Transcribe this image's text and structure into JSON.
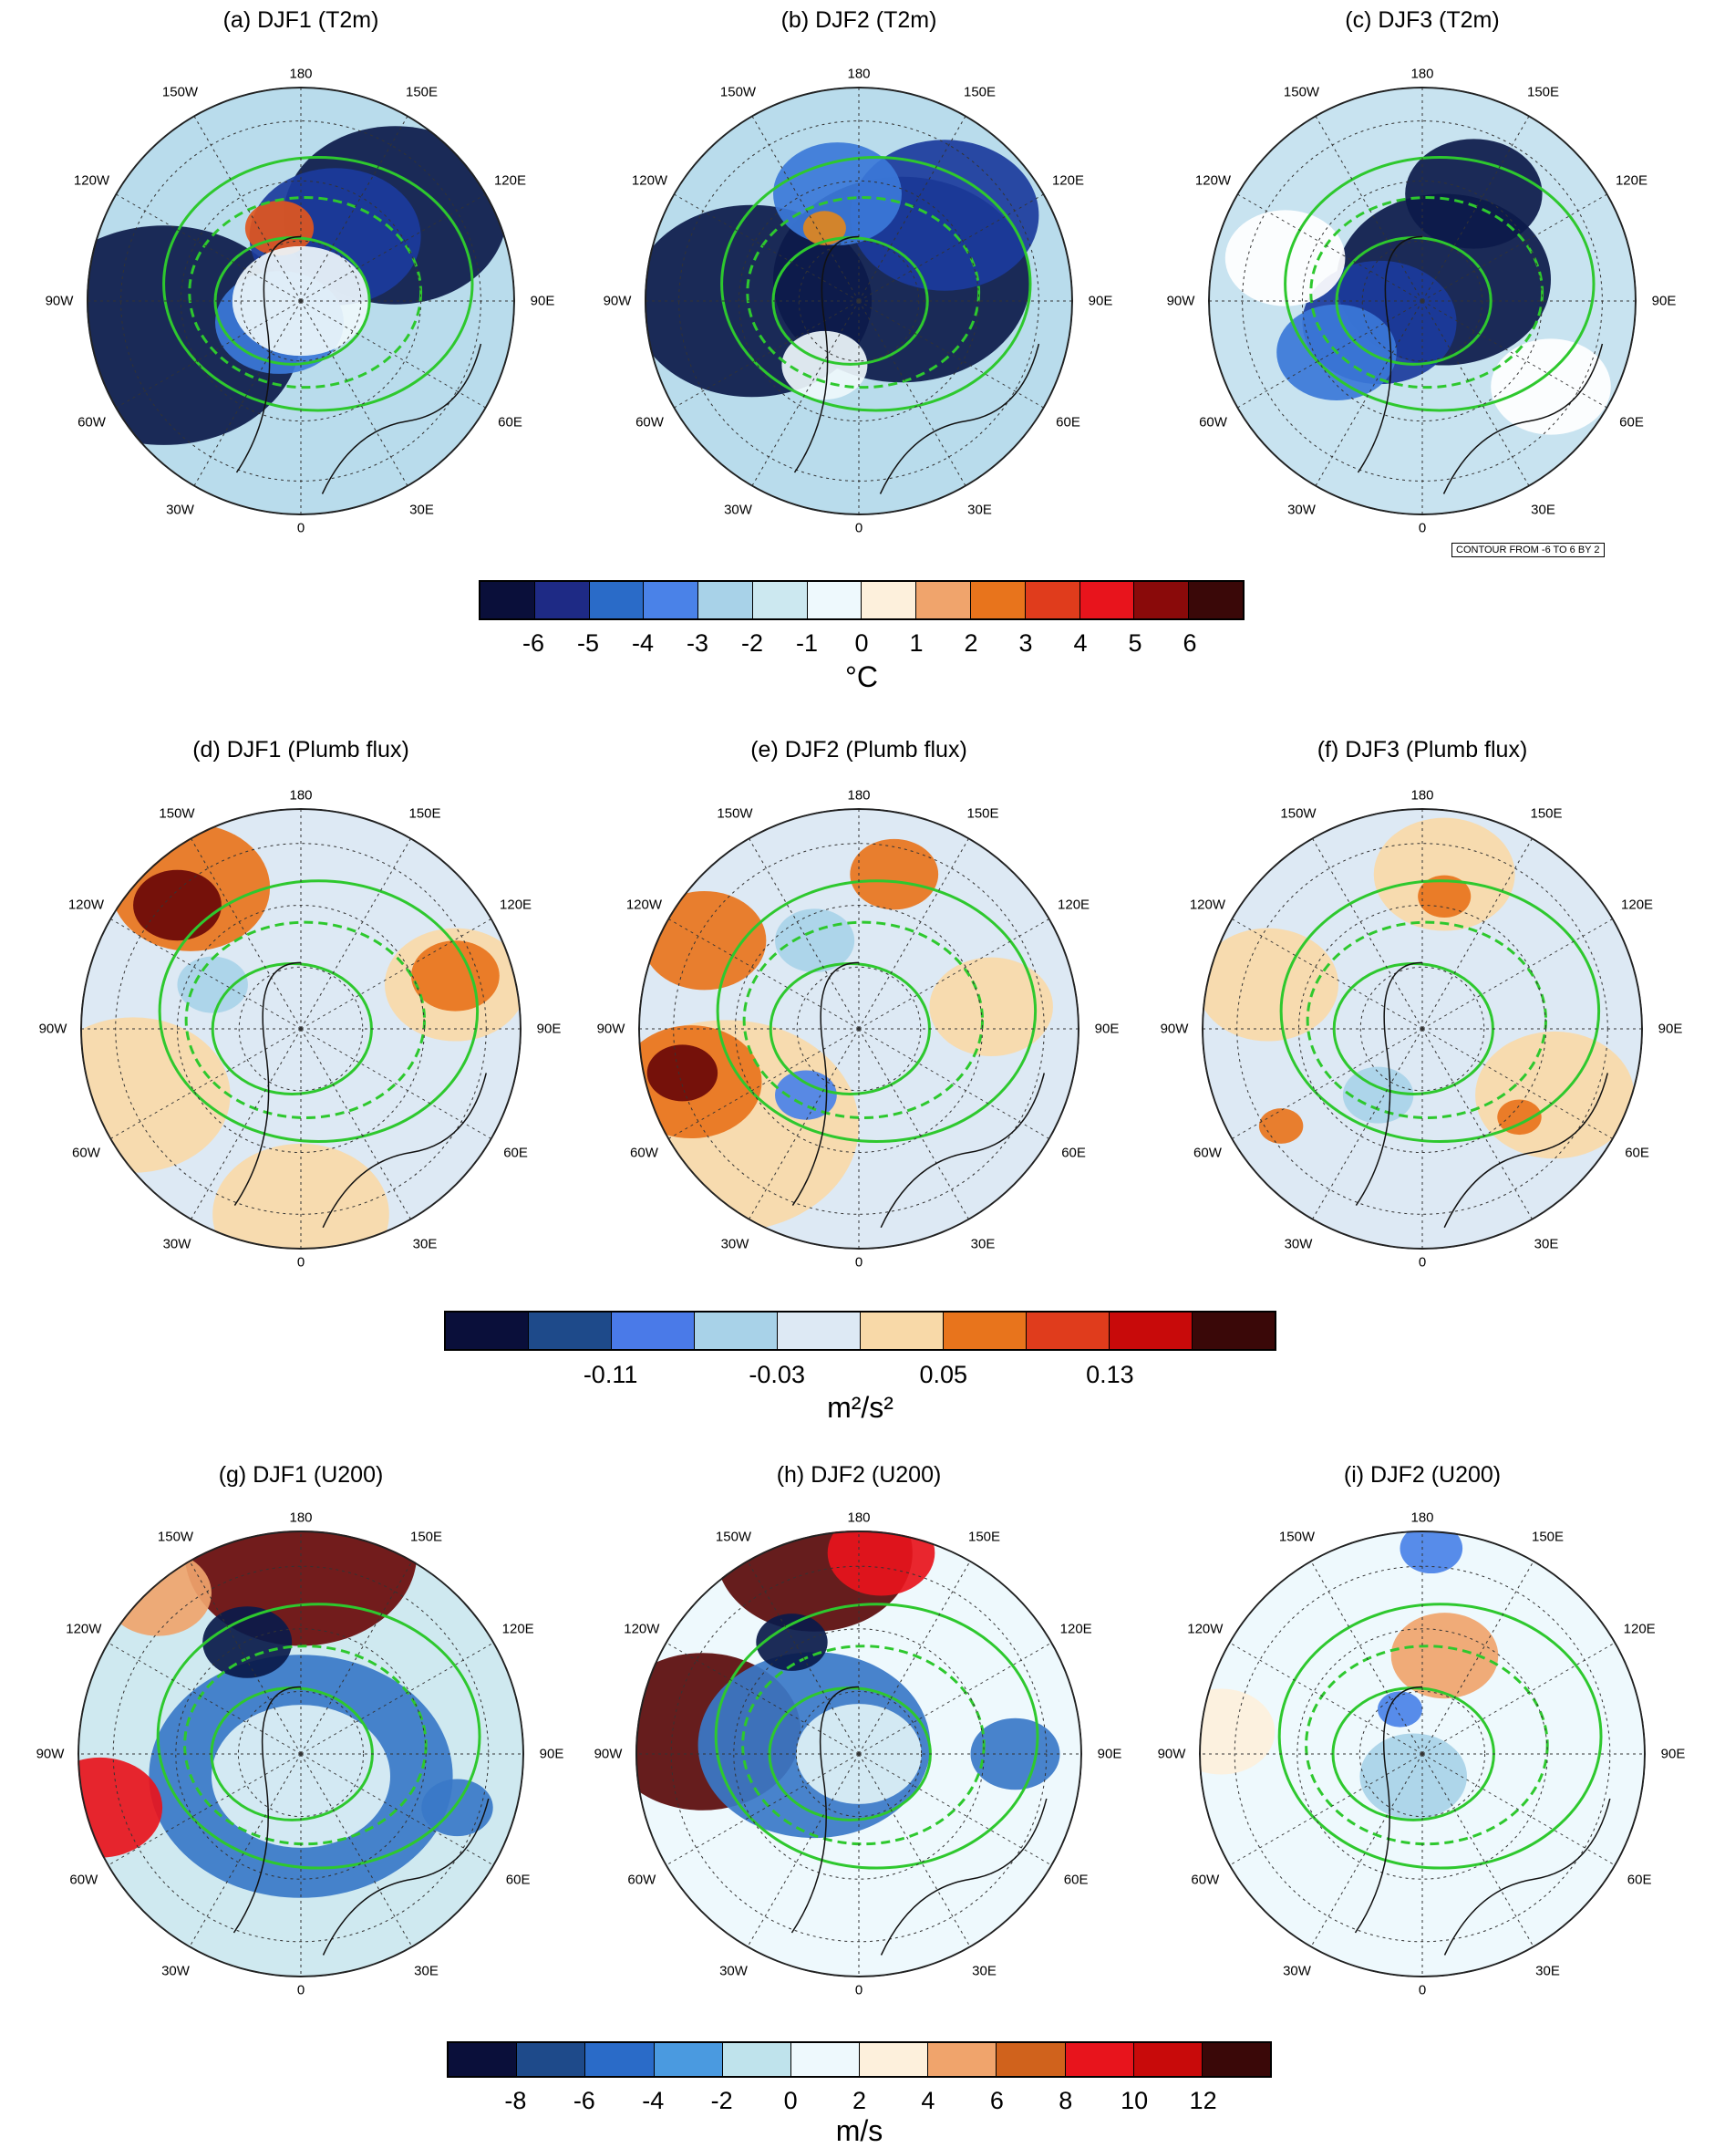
{
  "rows": [
    {
      "panels": [
        {
          "title": "(a) DJF1 (T2m)",
          "lons": {
            "top": "180",
            "ur": "150E",
            "r1": "120E",
            "right": "90E",
            "r2": "60E",
            "lr": "30E",
            "bottom": "0",
            "ll": "30W",
            "l2": "60W",
            "left": "90W",
            "l1": "120W",
            "ul": "150W"
          },
          "base": "#b9dcec",
          "blobs": [
            [
              "#0c1a4a",
              0.18,
              0.58,
              0.32
            ],
            [
              "#0c1a4a",
              0.72,
              0.3,
              0.26
            ],
            [
              "#1b3b9c",
              0.58,
              0.35,
              0.2
            ],
            [
              "#3b78d8",
              0.45,
              0.55,
              0.15
            ],
            [
              "#e0561e",
              0.45,
              0.33,
              0.08
            ],
            [
              "#eef7fb",
              0.5,
              0.5,
              0.16
            ]
          ]
        },
        {
          "title": "(b) DJF2 (T2m)",
          "lons": {
            "top": "180",
            "ur": "150E",
            "r1": "120E",
            "right": "90E",
            "r2": "60E",
            "lr": "30E",
            "bottom": "0",
            "ll": "30W",
            "l2": "60W",
            "left": "90W",
            "l1": "120W",
            "ul": "150W"
          },
          "base": "#b9dcec",
          "blobs": [
            [
              "#0c1a4a",
              0.25,
              0.5,
              0.28
            ],
            [
              "#0c1a4a",
              0.6,
              0.45,
              0.3
            ],
            [
              "#1b3b9c",
              0.7,
              0.3,
              0.22
            ],
            [
              "#3b78d8",
              0.45,
              0.25,
              0.15
            ],
            [
              "#e0861e",
              0.42,
              0.33,
              0.05
            ],
            [
              "#eef7fb",
              0.42,
              0.65,
              0.1
            ]
          ]
        },
        {
          "title": "(c) DJF3 (T2m)",
          "lons": {
            "top": "180",
            "ur": "150E",
            "r1": "120E",
            "right": "90E",
            "r2": "60E",
            "lr": "30E",
            "bottom": "0",
            "ll": "30W",
            "l2": "60W",
            "left": "90W",
            "l1": "120W",
            "ul": "150W"
          },
          "base": "#c8e3f0",
          "blobs": [
            [
              "#0c1a4a",
              0.55,
              0.45,
              0.25
            ],
            [
              "#0c1a4a",
              0.62,
              0.25,
              0.16
            ],
            [
              "#1b3b9c",
              0.4,
              0.55,
              0.18
            ],
            [
              "#3b78d8",
              0.3,
              0.62,
              0.14
            ],
            [
              "#ffffff",
              0.18,
              0.4,
              0.14
            ],
            [
              "#ffffff",
              0.8,
              0.7,
              0.14
            ]
          ]
        }
      ],
      "note": "CONTOUR FROM -6 TO 6 BY 2",
      "colorbar": {
        "colors": [
          "#0a0f3a",
          "#1e2a85",
          "#2a6bc8",
          "#4a82e8",
          "#a8d2e8",
          "#cce8f0",
          "#eef9fd",
          "#fdf0dc",
          "#f0a46c",
          "#e8741c",
          "#e03c1c",
          "#e8141c",
          "#8a0a0a",
          "#3a0808"
        ],
        "ticks": [
          "-6",
          "-5",
          "-4",
          "-3",
          "-2",
          "-1",
          "0",
          "1",
          "2",
          "3",
          "4",
          "5",
          "6"
        ],
        "tick_positions": [
          1,
          2,
          3,
          4,
          5,
          6,
          7,
          8,
          9,
          10,
          11,
          12,
          13
        ],
        "unit": "°C"
      }
    },
    {
      "panels": [
        {
          "title": "(d) DJF1 (Plumb flux)",
          "lons": {
            "top": "180",
            "ur": "150E",
            "r1": "120E",
            "right": "90E",
            "r2": "60E",
            "lr": "30E",
            "bottom": "0",
            "ll": "30W",
            "l2": "60W",
            "left": "90W",
            "l1": "120W",
            "ul": "150W"
          },
          "base": "#dde9f4",
          "blobs": [
            [
              "#f8d9a8",
              0.12,
              0.65,
              0.22
            ],
            [
              "#f8d9a8",
              0.85,
              0.4,
              0.16
            ],
            [
              "#f8d9a8",
              0.5,
              0.92,
              0.2
            ],
            [
              "#e8741c",
              0.25,
              0.18,
              0.18
            ],
            [
              "#6a0808",
              0.22,
              0.22,
              0.1
            ],
            [
              "#e8741c",
              0.85,
              0.38,
              0.1
            ],
            [
              "#a8d2e8",
              0.3,
              0.4,
              0.08
            ]
          ]
        },
        {
          "title": "(e) DJF2 (Plumb flux)",
          "lons": {
            "top": "180",
            "ur": "150E",
            "r1": "120E",
            "right": "90E",
            "r2": "60E",
            "lr": "30E",
            "bottom": "0",
            "ll": "30W",
            "l2": "60W",
            "left": "90W",
            "l1": "120W",
            "ul": "150W"
          },
          "base": "#dde9f4",
          "blobs": [
            [
              "#f8d9a8",
              0.2,
              0.72,
              0.3
            ],
            [
              "#e8741c",
              0.12,
              0.62,
              0.16
            ],
            [
              "#6a0808",
              0.1,
              0.6,
              0.08
            ],
            [
              "#e8741c",
              0.15,
              0.3,
              0.14
            ],
            [
              "#e8741c",
              0.58,
              0.15,
              0.1
            ],
            [
              "#f8d9a8",
              0.8,
              0.45,
              0.14
            ],
            [
              "#4a82e8",
              0.38,
              0.65,
              0.07
            ],
            [
              "#a8d2e8",
              0.4,
              0.3,
              0.09
            ]
          ]
        },
        {
          "title": "(f) DJF3 (Plumb flux)",
          "lons": {
            "top": "180",
            "ur": "150E",
            "r1": "120E",
            "right": "90E",
            "r2": "60E",
            "lr": "30E",
            "bottom": "0",
            "ll": "30W",
            "l2": "60W",
            "left": "90W",
            "l1": "120W",
            "ul": "150W"
          },
          "base": "#dde9f4",
          "blobs": [
            [
              "#f8d9a8",
              0.15,
              0.4,
              0.16
            ],
            [
              "#f8d9a8",
              0.8,
              0.65,
              0.18
            ],
            [
              "#f8d9a8",
              0.55,
              0.15,
              0.16
            ],
            [
              "#e8741c",
              0.55,
              0.2,
              0.06
            ],
            [
              "#e8741c",
              0.72,
              0.7,
              0.05
            ],
            [
              "#e8741c",
              0.18,
              0.72,
              0.05
            ],
            [
              "#a8d2e8",
              0.4,
              0.65,
              0.08
            ]
          ]
        }
      ],
      "colorbar": {
        "colors": [
          "#0a0f3a",
          "#1e4a8a",
          "#4a7ae8",
          "#a8d2e8",
          "#dde9f4",
          "#f8d9a8",
          "#e8741c",
          "#e03c1c",
          "#c80a0a",
          "#3a0808"
        ],
        "ticks": [
          "-0.11",
          "-0.03",
          "0.05",
          "0.13"
        ],
        "tick_positions": [
          2,
          4,
          6,
          8
        ],
        "unit": "m²/s²"
      }
    },
    {
      "panels": [
        {
          "title": "(g) DJF1 (U200)",
          "lons": {
            "top": "180",
            "ur": "150E",
            "r1": "120E",
            "right": "90E",
            "r2": "60E",
            "lr": "30E",
            "bottom": "0",
            "ll": "30W",
            "l2": "60W",
            "left": "90W",
            "l1": "120W",
            "ul": "150W"
          },
          "base": "#cfe9f0",
          "blobs": [
            [
              "#3a78c8",
              0.5,
              0.55,
              0.34
            ],
            [
              "#dff2f6",
              0.5,
              0.55,
              0.2
            ],
            [
              "#6a0a0a",
              0.5,
              0.05,
              0.26
            ],
            [
              "#e8141c",
              0.05,
              0.62,
              0.14
            ],
            [
              "#0a1a4a",
              0.38,
              0.25,
              0.1
            ],
            [
              "#3a78c8",
              0.85,
              0.62,
              0.08
            ],
            [
              "#f0a46c",
              0.18,
              0.14,
              0.12
            ]
          ]
        },
        {
          "title": "(h) DJF2 (U200)",
          "lons": {
            "top": "180",
            "ur": "150E",
            "r1": "120E",
            "right": "90E",
            "r2": "60E",
            "lr": "30E",
            "bottom": "0",
            "ll": "30W",
            "l2": "60W",
            "left": "90W",
            "l1": "120W",
            "ul": "150W"
          },
          "base": "#eef9fd",
          "blobs": [
            [
              "#5a0a0a",
              0.15,
              0.45,
              0.22
            ],
            [
              "#5a0a0a",
              0.4,
              0.05,
              0.22
            ],
            [
              "#e8141c",
              0.55,
              0.05,
              0.12
            ],
            [
              "#3a78c8",
              0.4,
              0.48,
              0.26
            ],
            [
              "#0a1a4a",
              0.35,
              0.25,
              0.08
            ],
            [
              "#dff2f6",
              0.5,
              0.5,
              0.14
            ],
            [
              "#3a78c8",
              0.85,
              0.5,
              0.1
            ]
          ]
        },
        {
          "title": "(i) DJF2 (U200)",
          "lons": {
            "top": "180",
            "ur": "150E",
            "r1": "120E",
            "right": "90E",
            "r2": "60E",
            "lr": "30E",
            "bottom": "0",
            "ll": "30W",
            "l2": "60W",
            "left": "90W",
            "l1": "120W",
            "ul": "150W"
          },
          "base": "#eef9fd",
          "blobs": [
            [
              "#f0a46c",
              0.55,
              0.28,
              0.12
            ],
            [
              "#4a82e8",
              0.52,
              0.04,
              0.07
            ],
            [
              "#4a82e8",
              0.45,
              0.4,
              0.05
            ],
            [
              "#a8d2e8",
              0.48,
              0.55,
              0.12
            ],
            [
              "#fdf0dc",
              0.05,
              0.45,
              0.12
            ]
          ]
        }
      ],
      "colorbar": {
        "colors": [
          "#0a0f3a",
          "#1e4a8a",
          "#2a6bc8",
          "#4a9ae0",
          "#bfe3ec",
          "#eef9fd",
          "#fdf0dc",
          "#f0a46c",
          "#d0621c",
          "#e8141c",
          "#c80a0a",
          "#3a0808"
        ],
        "ticks": [
          "-8",
          "-6",
          "-4",
          "-2",
          "0",
          "2",
          "4",
          "6",
          "8",
          "10",
          "12"
        ],
        "tick_positions": [
          1,
          2,
          3,
          4,
          5,
          6,
          7,
          8,
          9,
          10,
          11
        ],
        "unit": "m/s"
      }
    }
  ]
}
